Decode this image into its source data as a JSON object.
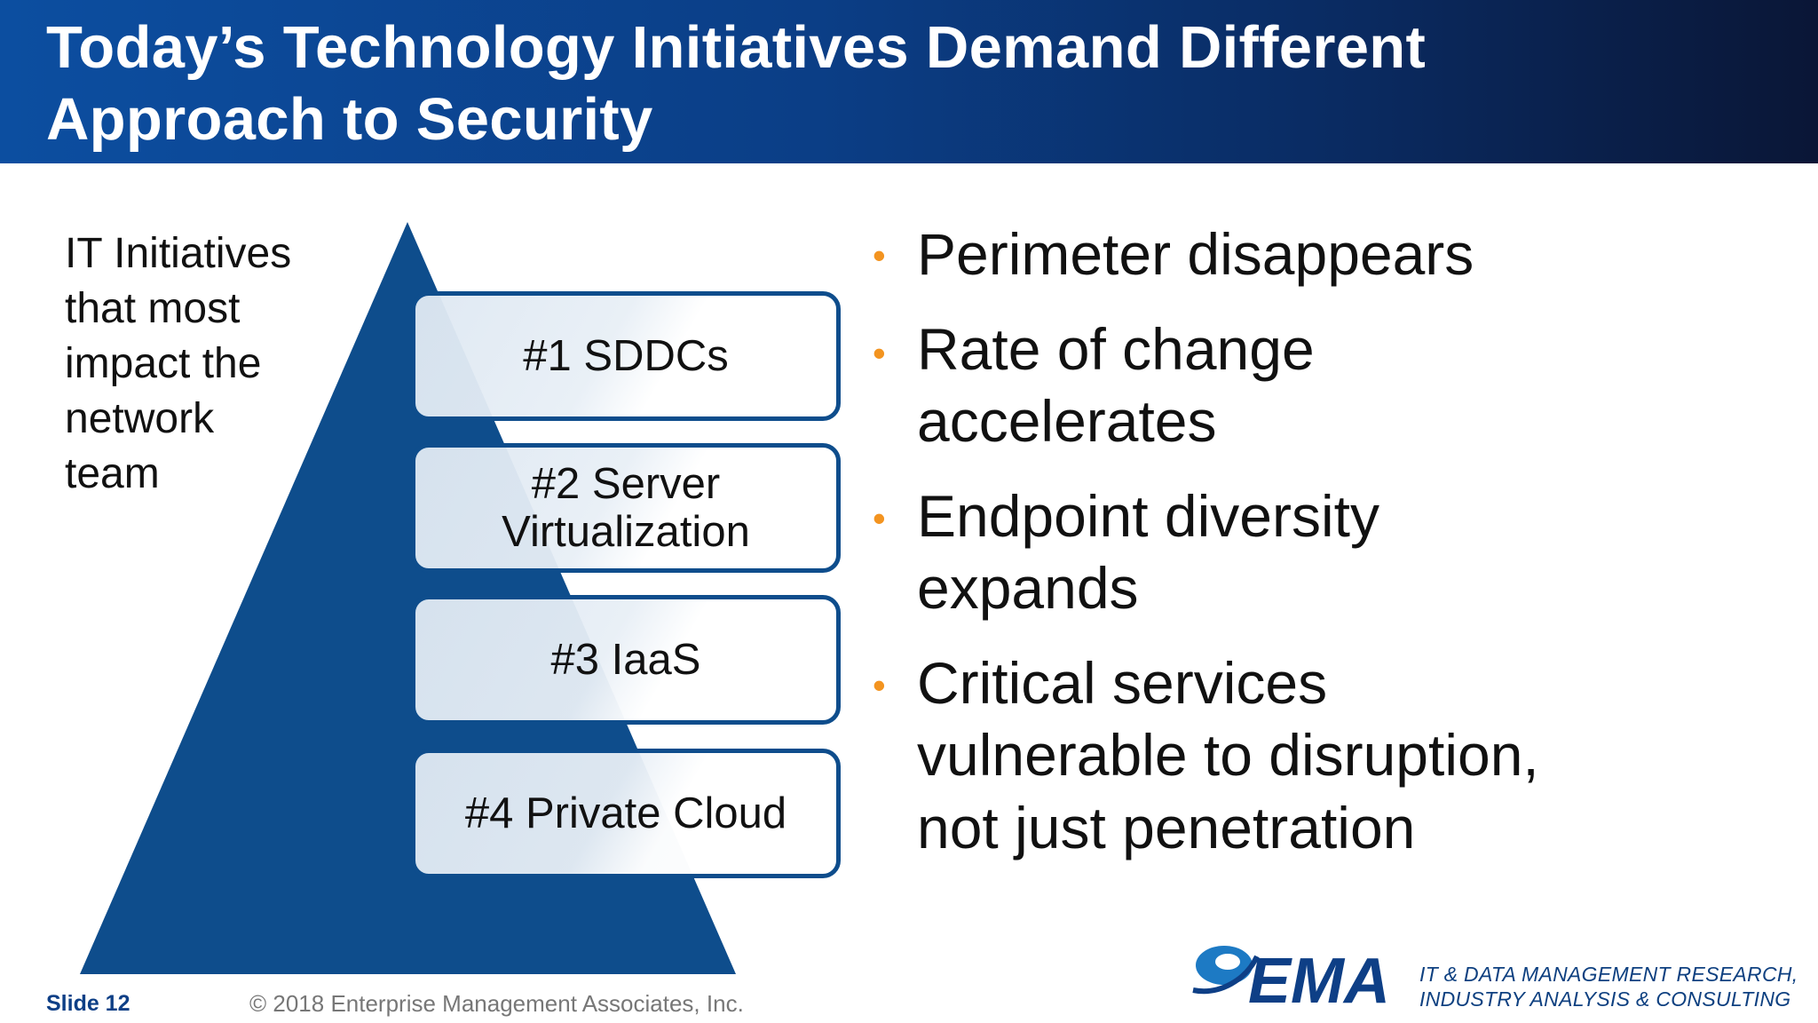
{
  "slide": {
    "title_lines": [
      "Today’s Technology Initiatives Demand Different",
      "Approach to Security"
    ],
    "pyramid_label_lines": [
      "IT Initiatives",
      "that most",
      "impact the",
      "network",
      "team"
    ],
    "ranked_initiatives": [
      {
        "lines": [
          "#1 SDDCs"
        ]
      },
      {
        "lines": [
          "#2 Server",
          "Virtualization"
        ]
      },
      {
        "lines": [
          "#3 IaaS"
        ]
      },
      {
        "lines": [
          "#4 Private Cloud"
        ]
      }
    ],
    "bullets": [
      {
        "lines": [
          "Perimeter disappears"
        ]
      },
      {
        "lines": [
          "Rate of change",
          "accelerates"
        ]
      },
      {
        "lines": [
          "Endpoint diversity",
          "expands"
        ]
      },
      {
        "lines": [
          "Critical services",
          "vulnerable to disruption,",
          "not just penetration"
        ]
      }
    ],
    "bullet_glyph": "•"
  },
  "footer": {
    "slide_number": "Slide 12",
    "copyright": "© 2018 Enterprise Management Associates, Inc.",
    "logo_text": "EMA",
    "tagline_lines": [
      "IT & DATA MANAGEMENT RESEARCH,",
      "INDUSTRY ANALYSIS & CONSULTING"
    ]
  },
  "colors": {
    "header_blue": "#0b3e86",
    "pyramid_blue": "#0e4d8c",
    "bullet_orange": "#f39420",
    "footer_blue": "#0e3f86"
  },
  "icons": {
    "logo": "ema-logo-icon",
    "bullet": "orange-bullet-icon"
  }
}
